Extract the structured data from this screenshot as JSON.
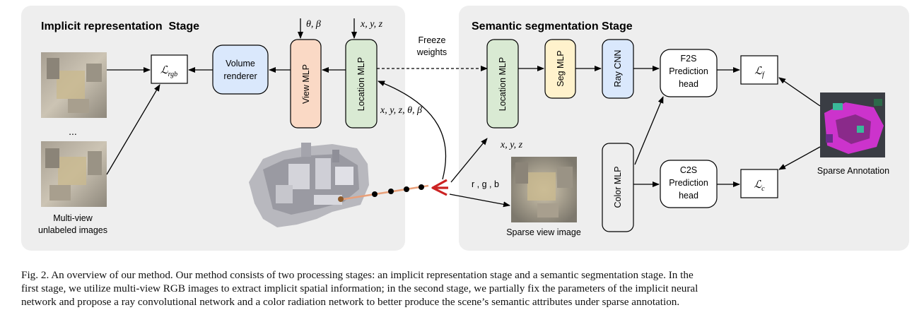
{
  "panels": {
    "implicit_title": "Implicit representation  Stage",
    "semantic_title": "Semantic segmentation Stage"
  },
  "inputs": {
    "ellipsis": "...",
    "multiview_line1": "Multi-view",
    "multiview_line2": "unlabeled images",
    "sparse_view": "Sparse view image",
    "sparse_annotation": "Sparse Annotation"
  },
  "blocks": {
    "volume_renderer_line1": "Volume",
    "volume_renderer_line2": "renderer",
    "view_mlp": "View MLP",
    "location_mlp": "Location MLP",
    "location_mlp_2": "Location MLP",
    "seg_mlp": "Seg MLP",
    "ray_cnn": "Ray CNN",
    "color_mlp": "Color MLP",
    "f2s_line1": "F2S",
    "f2s_line2": "Prediction",
    "f2s_line3": "head",
    "c2s_line1": "C2S",
    "c2s_line2": "Prediction",
    "c2s_line3": "head"
  },
  "losses": {
    "rgb_sym": "ℒ",
    "rgb_sub": "rgb",
    "f_sym": "ℒ",
    "f_sub": "f",
    "c_sym": "ℒ",
    "c_sub": "c"
  },
  "labels": {
    "theta_beta": "θ, β",
    "xyz_top": "x, y, z",
    "freeze_line1": "Freeze",
    "freeze_line2": "weights",
    "xyz_theta_beta": "x, y, z, θ, β",
    "xyz_bottom": "x, y, z",
    "rgb": "r , g , b"
  },
  "caption": {
    "line1": "Fig. 2.  An overview of our method. Our method consists of two processing stages: an implicit representation stage and a semantic segmentation stage. In the",
    "line2": "first stage, we utilize multi-view RGB images to extract implicit spatial information; in the second stage, we partially fix the parameters of the implicit neural",
    "line3": "network and propose a ray convolutional network and a color radiation network to better produce the scene’s semantic attributes under sparse annotation."
  },
  "colors": {
    "panel_bg": "#eeeeee",
    "volume_renderer": "#dae8fc",
    "view_mlp": "#fad9c5",
    "location_mlp": "#d9ead3",
    "seg_mlp": "#fff2cc",
    "ray_cnn": "#dae8fc",
    "color_mlp": "#eeeeee",
    "ray_line": "#e8a07a",
    "camera": "#cc2222",
    "annotation": "#cc33cc"
  }
}
